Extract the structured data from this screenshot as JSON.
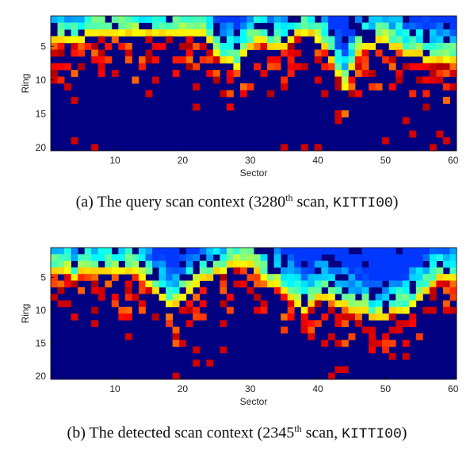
{
  "chart_data": [
    {
      "type": "heatmap",
      "id": "query",
      "xlabel": "Sector",
      "ylabel": "Ring",
      "xlim": [
        1,
        60
      ],
      "ylim": [
        1,
        20
      ],
      "xticks": [
        10,
        20,
        30,
        40,
        50,
        60
      ],
      "yticks": [
        5,
        10,
        15,
        20
      ],
      "colormap": "jet",
      "background_value": 0,
      "caption": {
        "prefix": "(a) The query scan context (3280",
        "sup": "th",
        "middle": " scan, ",
        "dataset": "KITTI00",
        "suffix": ")"
      },
      "profile": [
        4,
        4,
        4,
        4,
        4,
        3,
        3,
        3,
        3,
        3,
        3,
        3,
        3,
        3,
        3,
        3,
        3,
        3,
        3,
        3,
        3,
        3,
        3,
        4,
        6,
        7,
        7,
        8,
        6,
        5,
        4,
        4,
        5,
        5,
        5,
        4,
        3,
        3,
        3,
        4,
        5,
        7,
        9,
        11,
        8,
        6,
        5,
        5,
        4,
        4,
        5,
        5,
        6,
        6,
        6,
        7,
        7,
        7,
        7,
        7
      ]
    },
    {
      "type": "heatmap",
      "id": "detected",
      "xlabel": "Sector",
      "ylabel": "Ring",
      "xlim": [
        1,
        60
      ],
      "ylim": [
        1,
        20
      ],
      "xticks": [
        10,
        20,
        30,
        40,
        50,
        60
      ],
      "yticks": [
        5,
        10,
        15,
        20
      ],
      "colormap": "jet",
      "background_value": 0,
      "caption": {
        "prefix": "(b) The detected scan context (2345",
        "sup": "th",
        "middle": " scan, ",
        "dataset": "KITTI00",
        "suffix": ")"
      },
      "profile": [
        4,
        4,
        4,
        5,
        4,
        4,
        4,
        4,
        4,
        4,
        4,
        4,
        4,
        5,
        6,
        7,
        8,
        9,
        9,
        8,
        7,
        6,
        5,
        5,
        4,
        4,
        3,
        3,
        3,
        3,
        4,
        5,
        6,
        6,
        7,
        8,
        9,
        10,
        9,
        8,
        8,
        8,
        9,
        9,
        10,
        10,
        10,
        11,
        11,
        11,
        10,
        10,
        10,
        9,
        8,
        7,
        6,
        5,
        5,
        5
      ]
    }
  ]
}
